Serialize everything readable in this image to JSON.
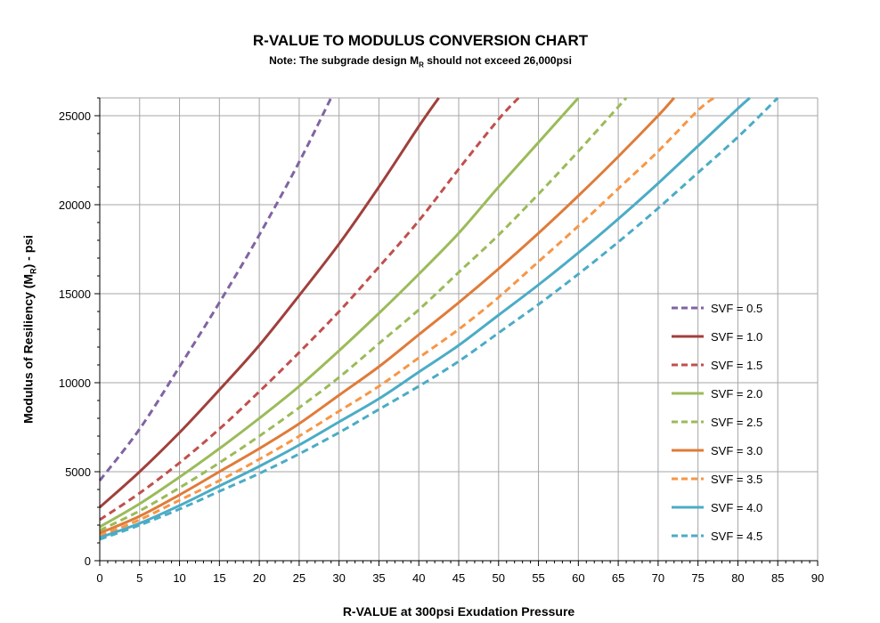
{
  "chart_data": {
    "type": "line",
    "title": "R-VALUE TO MODULUS CONVERSION CHART",
    "subtitle_prefix": "Note: The subgrade design M",
    "subtitle_sub": "R",
    "subtitle_suffix": " should not exceed 26,000psi",
    "xlabel": "R-VALUE at 300psi Exudation Pressure",
    "ylabel_prefix": "Modulus of Resiliency (M",
    "ylabel_sub": "R",
    "ylabel_suffix": ") - psi",
    "xlim": [
      0,
      90
    ],
    "ylim": [
      0,
      26000
    ],
    "x_ticks": [
      0,
      5,
      10,
      15,
      20,
      25,
      30,
      35,
      40,
      45,
      50,
      55,
      60,
      65,
      70,
      75,
      80,
      85,
      90
    ],
    "y_ticks": [
      0,
      5000,
      10000,
      15000,
      20000,
      25000
    ],
    "grid": true,
    "legend_position": "right",
    "series": [
      {
        "name": "SVF = 0.5",
        "color": "#8064A2",
        "dash": true,
        "x": [
          0,
          5,
          10,
          15,
          20,
          25,
          29
        ],
        "values": [
          4500,
          7400,
          10900,
          14500,
          18300,
          22400,
          26000
        ]
      },
      {
        "name": "SVF = 1.0",
        "color": "#A0403C",
        "dash": false,
        "x": [
          0,
          5,
          10,
          15,
          20,
          25,
          30,
          35,
          40,
          42.5
        ],
        "values": [
          3000,
          5000,
          7200,
          9600,
          12100,
          14900,
          17800,
          21000,
          24400,
          26000
        ]
      },
      {
        "name": "SVF = 1.5",
        "color": "#C0504D",
        "dash": true,
        "x": [
          0,
          5,
          10,
          15,
          20,
          25,
          30,
          35,
          40,
          45,
          50,
          52.5
        ],
        "values": [
          2300,
          3800,
          5500,
          7400,
          9500,
          11700,
          14000,
          16500,
          19100,
          22000,
          24800,
          26000
        ]
      },
      {
        "name": "SVF = 2.0",
        "color": "#9BBB59",
        "dash": false,
        "x": [
          0,
          5,
          10,
          15,
          20,
          25,
          30,
          35,
          40,
          45,
          50,
          55,
          60
        ],
        "values": [
          1900,
          3200,
          4700,
          6300,
          8000,
          9800,
          11800,
          13900,
          16100,
          18400,
          21000,
          23500,
          26000
        ]
      },
      {
        "name": "SVF = 2.5",
        "color": "#9BBB59",
        "dash": true,
        "x": [
          0,
          5,
          10,
          15,
          20,
          25,
          30,
          35,
          40,
          45,
          50,
          55,
          60,
          66
        ],
        "values": [
          1700,
          2800,
          4100,
          5500,
          7000,
          8600,
          10300,
          12200,
          14100,
          16200,
          18300,
          20600,
          23000,
          26000
        ]
      },
      {
        "name": "SVF = 3.0",
        "color": "#E07B39",
        "dash": false,
        "x": [
          0,
          5,
          10,
          15,
          20,
          25,
          30,
          35,
          40,
          45,
          50,
          55,
          60,
          65,
          70,
          72
        ],
        "values": [
          1550,
          2500,
          3700,
          5000,
          6300,
          7700,
          9300,
          10900,
          12700,
          14500,
          16400,
          18400,
          20500,
          22700,
          25000,
          26000
        ]
      },
      {
        "name": "SVF = 3.5",
        "color": "#F79646",
        "dash": true,
        "x": [
          0,
          5,
          10,
          15,
          20,
          25,
          30,
          35,
          40,
          45,
          50,
          55,
          60,
          65,
          70,
          75,
          77
        ],
        "values": [
          1400,
          2300,
          3400,
          4500,
          5700,
          7000,
          8400,
          9800,
          11400,
          13000,
          14800,
          16800,
          18800,
          20900,
          23000,
          25300,
          26000
        ]
      },
      {
        "name": "SVF = 4.0",
        "color": "#4BACC6",
        "dash": false,
        "x": [
          0,
          5,
          10,
          15,
          20,
          25,
          30,
          35,
          40,
          45,
          50,
          55,
          60,
          65,
          70,
          75,
          80,
          81.5
        ],
        "values": [
          1300,
          2100,
          3100,
          4200,
          5300,
          6500,
          7800,
          9100,
          10600,
          12100,
          13800,
          15500,
          17300,
          19200,
          21200,
          23300,
          25400,
          26000
        ]
      },
      {
        "name": "SVF = 4.5",
        "color": "#4BACC6",
        "dash": true,
        "x": [
          0,
          5,
          10,
          15,
          20,
          25,
          30,
          35,
          40,
          45,
          50,
          55,
          60,
          65,
          70,
          75,
          80,
          85
        ],
        "values": [
          1200,
          2000,
          2900,
          3900,
          4900,
          6000,
          7200,
          8500,
          9800,
          11200,
          12800,
          14400,
          16100,
          17900,
          19800,
          21800,
          23800,
          26000
        ]
      }
    ]
  }
}
